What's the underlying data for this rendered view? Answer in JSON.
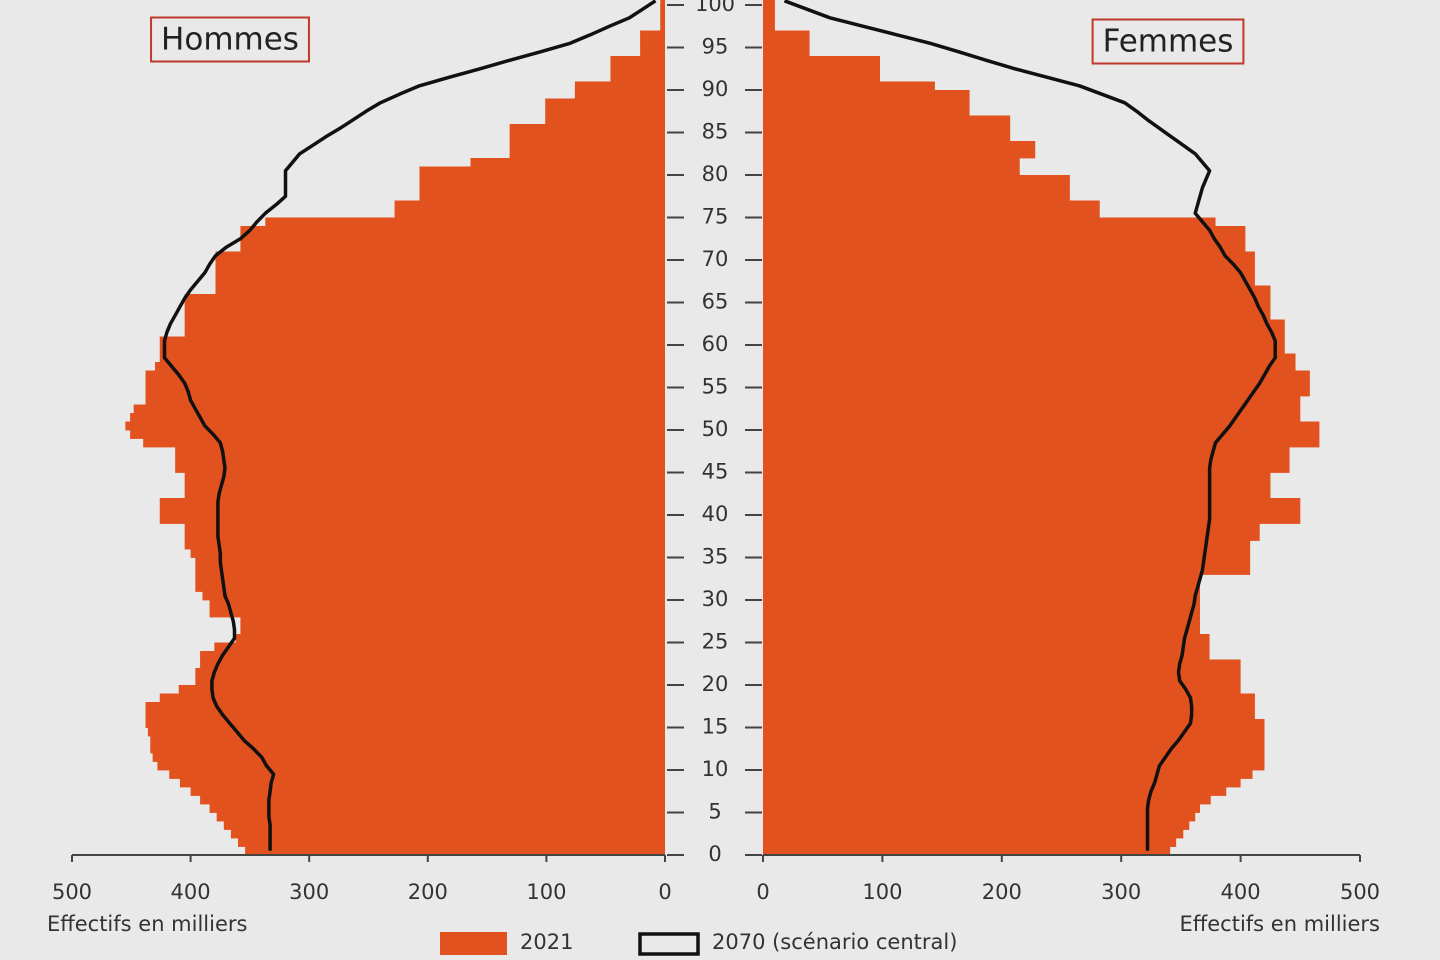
{
  "chart_data": [
    {
      "type": "bar",
      "orientation": "horizontal",
      "title": "Hommes",
      "xlabel": "Effectifs en milliers",
      "x_reversed": true,
      "xlim": [
        0,
        500
      ],
      "xticks": [
        0,
        100,
        200,
        300,
        400,
        500
      ],
      "ylim": [
        0,
        100
      ],
      "yticks": [
        0,
        5,
        10,
        15,
        20,
        25,
        30,
        35,
        40,
        45,
        50,
        55,
        60,
        65,
        70,
        75,
        80,
        85,
        90,
        95,
        100
      ],
      "y": [
        0,
        1,
        2,
        3,
        4,
        5,
        6,
        7,
        8,
        9,
        10,
        11,
        12,
        13,
        14,
        15,
        16,
        17,
        18,
        19,
        20,
        21,
        22,
        23,
        24,
        25,
        26,
        27,
        28,
        29,
        30,
        31,
        32,
        33,
        34,
        35,
        36,
        37,
        38,
        39,
        40,
        41,
        42,
        43,
        44,
        45,
        46,
        47,
        48,
        49,
        50,
        51,
        52,
        53,
        54,
        55,
        56,
        57,
        58,
        59,
        60,
        61,
        62,
        63,
        64,
        65,
        66,
        67,
        68,
        69,
        70,
        71,
        72,
        73,
        74,
        75,
        76,
        77,
        78,
        79,
        80,
        81,
        82,
        83,
        84,
        85,
        86,
        87,
        88,
        89,
        90,
        91,
        92,
        93,
        94,
        95,
        96,
        97,
        98,
        99,
        100
      ],
      "series": [
        {
          "name": "2021",
          "color": "#e1521f",
          "style": "bar",
          "values": [
            354,
            360,
            366,
            372,
            378,
            384,
            392,
            400,
            409,
            418,
            428,
            432,
            434,
            434,
            436,
            438,
            438,
            438,
            426,
            410,
            396,
            396,
            392,
            392,
            380,
            362,
            358,
            358,
            384,
            384,
            390,
            396,
            396,
            396,
            396,
            400,
            405,
            405,
            405,
            426,
            426,
            426,
            405,
            405,
            405,
            413,
            413,
            413,
            440,
            451,
            455,
            451,
            448,
            438,
            438,
            438,
            438,
            430,
            426,
            426,
            426,
            405,
            405,
            405,
            405,
            405,
            379,
            379,
            379,
            379,
            379,
            358,
            358,
            358,
            337,
            228,
            228,
            207,
            207,
            207,
            207,
            164,
            131,
            131,
            131,
            131,
            101,
            101,
            101,
            76,
            76,
            46,
            46,
            46,
            21,
            21,
            21,
            4,
            4,
            4,
            4
          ]
        },
        {
          "name": "2070 (scénario central)",
          "color": "#111111",
          "style": "line",
          "values": [
            333,
            333,
            333,
            333,
            334,
            334,
            334,
            333,
            332,
            330,
            336,
            340,
            347,
            355,
            361,
            367,
            373,
            378,
            381,
            382,
            382,
            380,
            377,
            373,
            368,
            363,
            363,
            364,
            366,
            368,
            371,
            372,
            373,
            374,
            375,
            375,
            376,
            377,
            377,
            377,
            377,
            377,
            376,
            374,
            372,
            371,
            372,
            373,
            375,
            381,
            388,
            392,
            396,
            400,
            402,
            405,
            410,
            416,
            422,
            422,
            422,
            420,
            417,
            413,
            409,
            405,
            400,
            394,
            388,
            384,
            379,
            370,
            358,
            350,
            344,
            337,
            328,
            320,
            320,
            320,
            320,
            314,
            308,
            297,
            286,
            274,
            263,
            252,
            240,
            224,
            207,
            182,
            156,
            131,
            105,
            80,
            63,
            47,
            30,
            19,
            8
          ]
        }
      ]
    },
    {
      "type": "bar",
      "orientation": "horizontal",
      "title": "Femmes",
      "xlabel": "Effectifs en milliers",
      "x_reversed": false,
      "xlim": [
        0,
        500
      ],
      "xticks": [
        0,
        100,
        200,
        300,
        400,
        500
      ],
      "ylim": [
        0,
        100
      ],
      "y": [
        0,
        1,
        2,
        3,
        4,
        5,
        6,
        7,
        8,
        9,
        10,
        11,
        12,
        13,
        14,
        15,
        16,
        17,
        18,
        19,
        20,
        21,
        22,
        23,
        24,
        25,
        26,
        27,
        28,
        29,
        30,
        31,
        32,
        33,
        34,
        35,
        36,
        37,
        38,
        39,
        40,
        41,
        42,
        43,
        44,
        45,
        46,
        47,
        48,
        49,
        50,
        51,
        52,
        53,
        54,
        55,
        56,
        57,
        58,
        59,
        60,
        61,
        62,
        63,
        64,
        65,
        66,
        67,
        68,
        69,
        70,
        71,
        72,
        73,
        74,
        75,
        76,
        77,
        78,
        79,
        80,
        81,
        82,
        83,
        84,
        85,
        86,
        87,
        88,
        89,
        90,
        91,
        92,
        93,
        94,
        95,
        96,
        97,
        98,
        99,
        100
      ],
      "series": [
        {
          "color": "#e1521f",
          "style": "bar",
          "values": [
            341,
            346,
            352,
            357,
            362,
            366,
            375,
            388,
            400,
            410,
            420,
            420,
            420,
            420,
            420,
            420,
            412,
            412,
            412,
            400,
            400,
            400,
            400,
            374,
            374,
            374,
            366,
            366,
            366,
            366,
            366,
            366,
            366,
            408,
            408,
            408,
            408,
            416,
            416,
            450,
            450,
            450,
            425,
            425,
            425,
            441,
            441,
            441,
            466,
            466,
            466,
            450,
            450,
            450,
            458,
            458,
            458,
            446,
            446,
            437,
            437,
            437,
            437,
            425,
            425,
            425,
            425,
            412,
            412,
            412,
            412,
            404,
            404,
            404,
            379,
            282,
            282,
            257,
            257,
            257,
            215,
            215,
            228,
            228,
            207,
            207,
            207,
            173,
            173,
            173,
            144,
            98,
            98,
            98,
            39,
            39,
            39,
            10,
            10,
            10,
            10
          ]
        },
        {
          "color": "#111111",
          "style": "line",
          "values": [
            322,
            322,
            322,
            322,
            322,
            322,
            323,
            325,
            328,
            330,
            332,
            337,
            342,
            348,
            353,
            358,
            359,
            359,
            358,
            354,
            349,
            348,
            349,
            351,
            352,
            353,
            355,
            357,
            359,
            361,
            362,
            364,
            366,
            368,
            369,
            370,
            371,
            372,
            373,
            374,
            374,
            374,
            374,
            374,
            374,
            374,
            375,
            377,
            379,
            385,
            391,
            396,
            401,
            406,
            411,
            416,
            420,
            424,
            429,
            429,
            429,
            426,
            422,
            419,
            415,
            412,
            408,
            404,
            400,
            394,
            387,
            383,
            378,
            374,
            368,
            362,
            364,
            366,
            368,
            371,
            374,
            368,
            362,
            352,
            342,
            332,
            322,
            313,
            303,
            284,
            265,
            238,
            211,
            187,
            164,
            140,
            112,
            84,
            56,
            37,
            18
          ]
        }
      ]
    }
  ]
}
